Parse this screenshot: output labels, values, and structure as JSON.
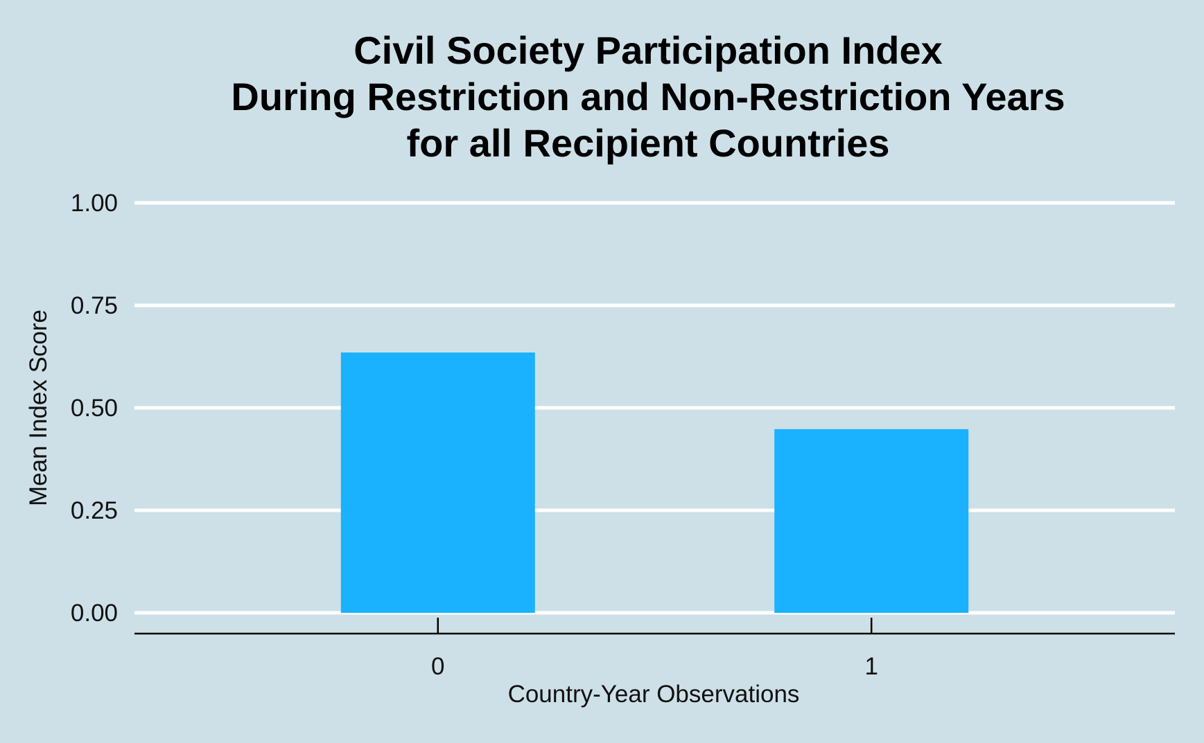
{
  "chart_data": {
    "type": "bar",
    "title_lines": [
      "Civil Society Participation Index",
      "During Restriction and Non-Restriction Years",
      "for all Recipient Countries"
    ],
    "xlabel": "Country-Year Observations",
    "ylabel": "Mean Index Score",
    "categories": [
      "0",
      "1"
    ],
    "values": [
      0.635,
      0.448
    ],
    "ylim": [
      0,
      1
    ],
    "y_ticks": [
      "0.00",
      "0.25",
      "0.50",
      "0.75",
      "1.00"
    ],
    "y_tick_values": [
      0,
      0.25,
      0.5,
      0.75,
      1
    ],
    "grid": "horizontal",
    "legend": "none",
    "colors": {
      "bar": "#1ab1fe",
      "background": "#cde0e8",
      "gridline": "#ffffff",
      "axis": "#000000"
    }
  }
}
